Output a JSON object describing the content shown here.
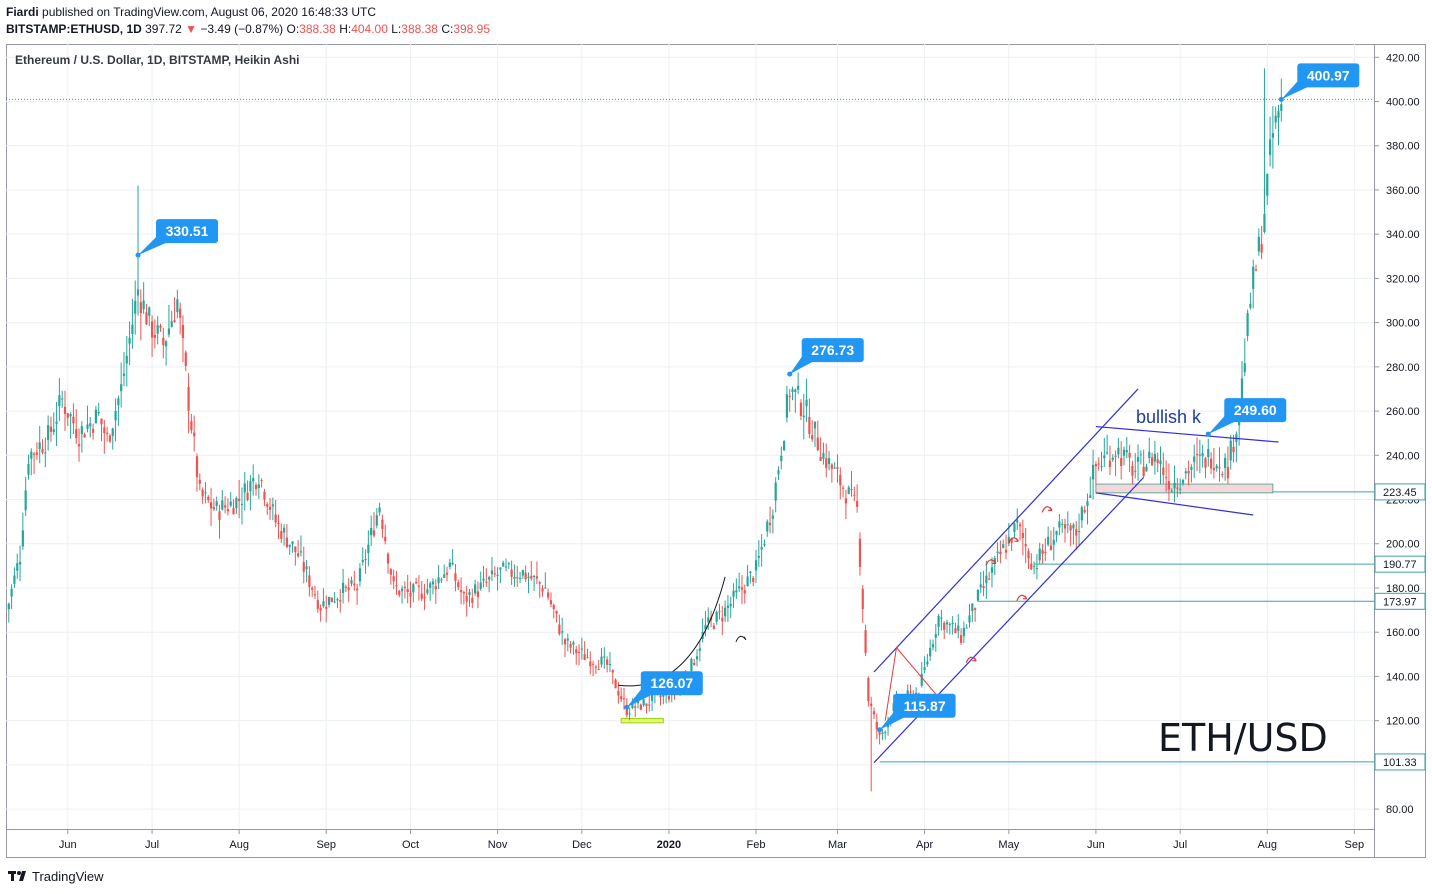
{
  "header": {
    "author": "Fiardi",
    "published_text": "published on TradingView.com, August 06, 2020 16:48:33 UTC",
    "symbol": "BITSTAMP:ETHUSD, 1D",
    "last": "397.72",
    "change": "−3.49 (−0.87%)",
    "o_label": "O:",
    "o_value": "388.38",
    "h_label": "H:",
    "h_value": "404.00",
    "l_label": "L:",
    "l_value": "388.38",
    "c_label": "C:",
    "c_value": "398.95"
  },
  "footer": {
    "brand": "TradingView"
  },
  "colors": {
    "up": "#26a69a",
    "down": "#ef5350",
    "callout": "#2196f3",
    "trendline": "#2f2fd8",
    "hline": "#3aa3a8",
    "grid": "#eceff3"
  },
  "chart_data": {
    "type": "candlestick",
    "title": "Ethereum / U.S. Dollar, 1D, BITSTAMP, Heikin Ashi",
    "overlay_text": "ETH/USD",
    "note_text": "bullish k",
    "y_ticks": [
      "420.00",
      "400.00",
      "380.00",
      "360.00",
      "340.00",
      "320.00",
      "300.00",
      "280.00",
      "260.00",
      "240.00",
      "220.00",
      "200.00",
      "180.00",
      "160.00",
      "140.00",
      "120.00",
      "100.00",
      "80.00"
    ],
    "y_range": [
      71,
      426
    ],
    "x_ticks": [
      "Jun",
      "Jul",
      "Aug",
      "Sep",
      "Oct",
      "Nov",
      "Dec",
      "2020",
      "Feb",
      "Mar",
      "Apr",
      "May",
      "Jun",
      "Jul",
      "Aug",
      "Sep"
    ],
    "x_range": [
      "2019-05-10",
      "2020-09-08"
    ],
    "last_price": 400.97,
    "price_labels": [
      "223.45",
      "190.77",
      "173.97",
      "101.33"
    ],
    "callouts": [
      {
        "date": "2019-06-26",
        "value": 330.51,
        "label": "330.51"
      },
      {
        "date": "2020-02-13",
        "value": 276.73,
        "label": "276.73"
      },
      {
        "date": "2019-12-17",
        "value": 126.07,
        "label": "126.07"
      },
      {
        "date": "2020-03-16",
        "value": 115.87,
        "label": "115.87"
      },
      {
        "date": "2020-07-11",
        "value": 249.6,
        "label": "249.60"
      },
      {
        "date": "2020-08-06",
        "value": 400.97,
        "label": "400.97"
      }
    ],
    "series": [
      {
        "date": "2019-05-10",
        "value": 168
      },
      {
        "date": "2019-05-15",
        "value": 195
      },
      {
        "date": "2019-05-18",
        "value": 240
      },
      {
        "date": "2019-05-25",
        "value": 248
      },
      {
        "date": "2019-05-30",
        "value": 265
      },
      {
        "date": "2019-06-05",
        "value": 250
      },
      {
        "date": "2019-06-12",
        "value": 258
      },
      {
        "date": "2019-06-15",
        "value": 247
      },
      {
        "date": "2019-06-20",
        "value": 270
      },
      {
        "date": "2019-06-26",
        "value": 315
      },
      {
        "date": "2019-06-30",
        "value": 300
      },
      {
        "date": "2019-07-05",
        "value": 290
      },
      {
        "date": "2019-07-10",
        "value": 310
      },
      {
        "date": "2019-07-14",
        "value": 265
      },
      {
        "date": "2019-07-18",
        "value": 222
      },
      {
        "date": "2019-07-24",
        "value": 215
      },
      {
        "date": "2019-08-01",
        "value": 220
      },
      {
        "date": "2019-08-08",
        "value": 232
      },
      {
        "date": "2019-08-14",
        "value": 210
      },
      {
        "date": "2019-08-22",
        "value": 195
      },
      {
        "date": "2019-08-30",
        "value": 172
      },
      {
        "date": "2019-09-06",
        "value": 178
      },
      {
        "date": "2019-09-12",
        "value": 180
      },
      {
        "date": "2019-09-20",
        "value": 218
      },
      {
        "date": "2019-09-25",
        "value": 180
      },
      {
        "date": "2019-10-01",
        "value": 177
      },
      {
        "date": "2019-10-08",
        "value": 180
      },
      {
        "date": "2019-10-15",
        "value": 190
      },
      {
        "date": "2019-10-20",
        "value": 175
      },
      {
        "date": "2019-10-26",
        "value": 180
      },
      {
        "date": "2019-11-02",
        "value": 187
      },
      {
        "date": "2019-11-10",
        "value": 187
      },
      {
        "date": "2019-11-18",
        "value": 180
      },
      {
        "date": "2019-11-25",
        "value": 155
      },
      {
        "date": "2019-12-01",
        "value": 150
      },
      {
        "date": "2019-12-10",
        "value": 145
      },
      {
        "date": "2019-12-17",
        "value": 125
      },
      {
        "date": "2019-12-24",
        "value": 128
      },
      {
        "date": "2020-01-01",
        "value": 132
      },
      {
        "date": "2020-01-08",
        "value": 141
      },
      {
        "date": "2020-01-14",
        "value": 162
      },
      {
        "date": "2020-01-20",
        "value": 168
      },
      {
        "date": "2020-01-26",
        "value": 178
      },
      {
        "date": "2020-02-01",
        "value": 188
      },
      {
        "date": "2020-02-07",
        "value": 218
      },
      {
        "date": "2020-02-13",
        "value": 270
      },
      {
        "date": "2020-02-18",
        "value": 262
      },
      {
        "date": "2020-02-25",
        "value": 240
      },
      {
        "date": "2020-03-02",
        "value": 228
      },
      {
        "date": "2020-03-08",
        "value": 215
      },
      {
        "date": "2020-03-12",
        "value": 130
      },
      {
        "date": "2020-03-16",
        "value": 112
      },
      {
        "date": "2020-03-22",
        "value": 128
      },
      {
        "date": "2020-03-30",
        "value": 133
      },
      {
        "date": "2020-04-06",
        "value": 167
      },
      {
        "date": "2020-04-14",
        "value": 158
      },
      {
        "date": "2020-04-20",
        "value": 175
      },
      {
        "date": "2020-04-28",
        "value": 195
      },
      {
        "date": "2020-05-04",
        "value": 208
      },
      {
        "date": "2020-05-10",
        "value": 190
      },
      {
        "date": "2020-05-18",
        "value": 205
      },
      {
        "date": "2020-05-25",
        "value": 205
      },
      {
        "date": "2020-06-01",
        "value": 235
      },
      {
        "date": "2020-06-08",
        "value": 243
      },
      {
        "date": "2020-06-15",
        "value": 233
      },
      {
        "date": "2020-06-22",
        "value": 240
      },
      {
        "date": "2020-06-28",
        "value": 227
      },
      {
        "date": "2020-07-05",
        "value": 235
      },
      {
        "date": "2020-07-12",
        "value": 240
      },
      {
        "date": "2020-07-18",
        "value": 235
      },
      {
        "date": "2020-07-22",
        "value": 260
      },
      {
        "date": "2020-07-26",
        "value": 310
      },
      {
        "date": "2020-07-30",
        "value": 340
      },
      {
        "date": "2020-08-03",
        "value": 385
      },
      {
        "date": "2020-08-06",
        "value": 398
      }
    ]
  }
}
